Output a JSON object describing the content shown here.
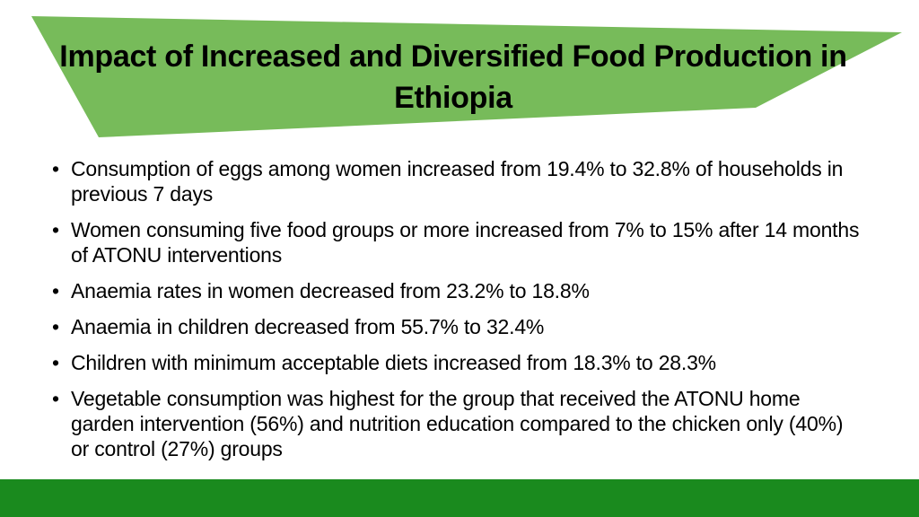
{
  "slide": {
    "title": "Impact of Increased and Diversified Food Production in Ethiopia",
    "bullets": [
      "Consumption of eggs among women increased from 19.4% to 32.8% of households in previous 7 days",
      "Women consuming five food groups or more increased from 7% to 15% after 14 months of ATONU interventions",
      "Anaemia rates in women decreased from 23.2% to 18.8%",
      "Anaemia in children decreased from 55.7% to 32.4%",
      "Children with minimum acceptable diets increased from 18.3% to 28.3%",
      "Vegetable consumption was highest for the group that received the ATONU home garden intervention (56%) and nutrition education compared to the chicken only (40%) or control (27%) groups"
    ],
    "bullet_glyph": "•"
  },
  "colors": {
    "banner_fill": "#77bb5a",
    "footer_bar": "#1a8a1e",
    "text": "#000000"
  }
}
